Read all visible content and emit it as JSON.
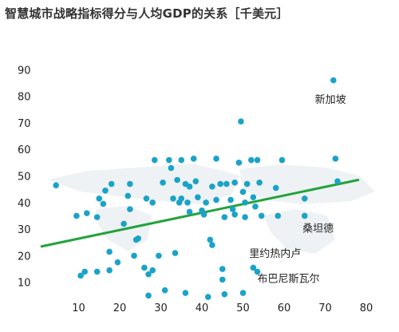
{
  "chart_data": {
    "type": "scatter",
    "title": "智慧城市战略指标得分与人均GDP的关系［千美元］",
    "xlabel": "",
    "ylabel": "",
    "xlim": [
      0,
      80
    ],
    "ylim": [
      0,
      95
    ],
    "x_ticks": [
      10,
      20,
      30,
      40,
      50,
      60,
      70,
      80
    ],
    "y_ticks": [
      10,
      20,
      30,
      40,
      50,
      60,
      70,
      80,
      90
    ],
    "grid": false,
    "colors": {
      "points": "#1aa3c8",
      "trend": "#22a33b",
      "map": "#eef2f5"
    },
    "trend_line": {
      "x": [
        1,
        78
      ],
      "y": [
        23.5,
        48.5
      ]
    },
    "points": [
      {
        "x": 4.5,
        "y": 46.5
      },
      {
        "x": 9.5,
        "y": 35
      },
      {
        "x": 10.5,
        "y": 12.5
      },
      {
        "x": 11.5,
        "y": 14
      },
      {
        "x": 12,
        "y": 36
      },
      {
        "x": 14.5,
        "y": 34.5
      },
      {
        "x": 14.5,
        "y": 14
      },
      {
        "x": 15,
        "y": 41.5
      },
      {
        "x": 16,
        "y": 39.5
      },
      {
        "x": 16.5,
        "y": 44.5
      },
      {
        "x": 17.5,
        "y": 21.5
      },
      {
        "x": 17.5,
        "y": 14.5
      },
      {
        "x": 18,
        "y": 47
      },
      {
        "x": 19.5,
        "y": 17.5
      },
      {
        "x": 21,
        "y": 32
      },
      {
        "x": 22,
        "y": 42.5
      },
      {
        "x": 22.5,
        "y": 47
      },
      {
        "x": 22.5,
        "y": 37.5
      },
      {
        "x": 23.5,
        "y": 20
      },
      {
        "x": 24,
        "y": 26
      },
      {
        "x": 24.5,
        "y": 26.5
      },
      {
        "x": 26,
        "y": 15.5
      },
      {
        "x": 26.5,
        "y": 41.5
      },
      {
        "x": 27,
        "y": 5
      },
      {
        "x": 27,
        "y": 13
      },
      {
        "x": 28,
        "y": 40
      },
      {
        "x": 28,
        "y": 14.5
      },
      {
        "x": 28.5,
        "y": 56
      },
      {
        "x": 29.5,
        "y": 20
      },
      {
        "x": 30.5,
        "y": 47.5
      },
      {
        "x": 31,
        "y": 7
      },
      {
        "x": 32,
        "y": 56
      },
      {
        "x": 32.5,
        "y": 53
      },
      {
        "x": 33,
        "y": 41.5
      },
      {
        "x": 33.5,
        "y": 21
      },
      {
        "x": 34,
        "y": 48.5
      },
      {
        "x": 34.5,
        "y": 40
      },
      {
        "x": 35,
        "y": 41.5
      },
      {
        "x": 35,
        "y": 56
      },
      {
        "x": 36,
        "y": 47
      },
      {
        "x": 36,
        "y": 6
      },
      {
        "x": 36.5,
        "y": 40
      },
      {
        "x": 37,
        "y": 36.5
      },
      {
        "x": 37,
        "y": 46
      },
      {
        "x": 38,
        "y": 56.5
      },
      {
        "x": 38.5,
        "y": 48
      },
      {
        "x": 39,
        "y": 42
      },
      {
        "x": 40,
        "y": 37
      },
      {
        "x": 40.5,
        "y": 35.5
      },
      {
        "x": 41,
        "y": 40
      },
      {
        "x": 41.5,
        "y": 4.5
      },
      {
        "x": 42,
        "y": 26
      },
      {
        "x": 42.5,
        "y": 46
      },
      {
        "x": 42.5,
        "y": 24
      },
      {
        "x": 43.5,
        "y": 56.5
      },
      {
        "x": 43.5,
        "y": 41
      },
      {
        "x": 44.5,
        "y": 47
      },
      {
        "x": 45,
        "y": 15
      },
      {
        "x": 45,
        "y": 11
      },
      {
        "x": 45.5,
        "y": 5.5
      },
      {
        "x": 45.5,
        "y": 34.5
      },
      {
        "x": 46,
        "y": 47
      },
      {
        "x": 47,
        "y": 41
      },
      {
        "x": 47.5,
        "y": 37.5
      },
      {
        "x": 48,
        "y": 47.5
      },
      {
        "x": 48,
        "y": 35.5
      },
      {
        "x": 49,
        "y": 55
      },
      {
        "x": 49.5,
        "y": 70.5
      },
      {
        "x": 50,
        "y": 44
      },
      {
        "x": 50,
        "y": 6
      },
      {
        "x": 50.5,
        "y": 40
      },
      {
        "x": 50.5,
        "y": 34.5
      },
      {
        "x": 51,
        "y": 47
      },
      {
        "x": 52,
        "y": 56
      },
      {
        "x": 52.5,
        "y": 42
      },
      {
        "x": 52.5,
        "y": 15.5
      },
      {
        "x": 53,
        "y": 38.5
      },
      {
        "x": 53.5,
        "y": 14
      },
      {
        "x": 53.5,
        "y": 56
      },
      {
        "x": 54,
        "y": 47.5
      },
      {
        "x": 54.5,
        "y": 35
      },
      {
        "x": 58,
        "y": 45.5
      },
      {
        "x": 58.5,
        "y": 35
      },
      {
        "x": 59.5,
        "y": 56
      },
      {
        "x": 65,
        "y": 41.5
      },
      {
        "x": 65,
        "y": 35
      },
      {
        "x": 72,
        "y": 86
      },
      {
        "x": 72.5,
        "y": 56.5
      },
      {
        "x": 73,
        "y": 48
      }
    ],
    "annotations": [
      {
        "text": "新加坡",
        "x": 67.5,
        "y": 77.5
      },
      {
        "text": "桑坦德",
        "x": 64.5,
        "y": 29
      },
      {
        "text": "里约热内卢",
        "x": 51.5,
        "y": 19.5
      },
      {
        "text": "布巴尼斯瓦尔",
        "x": 53.5,
        "y": 10
      }
    ]
  }
}
